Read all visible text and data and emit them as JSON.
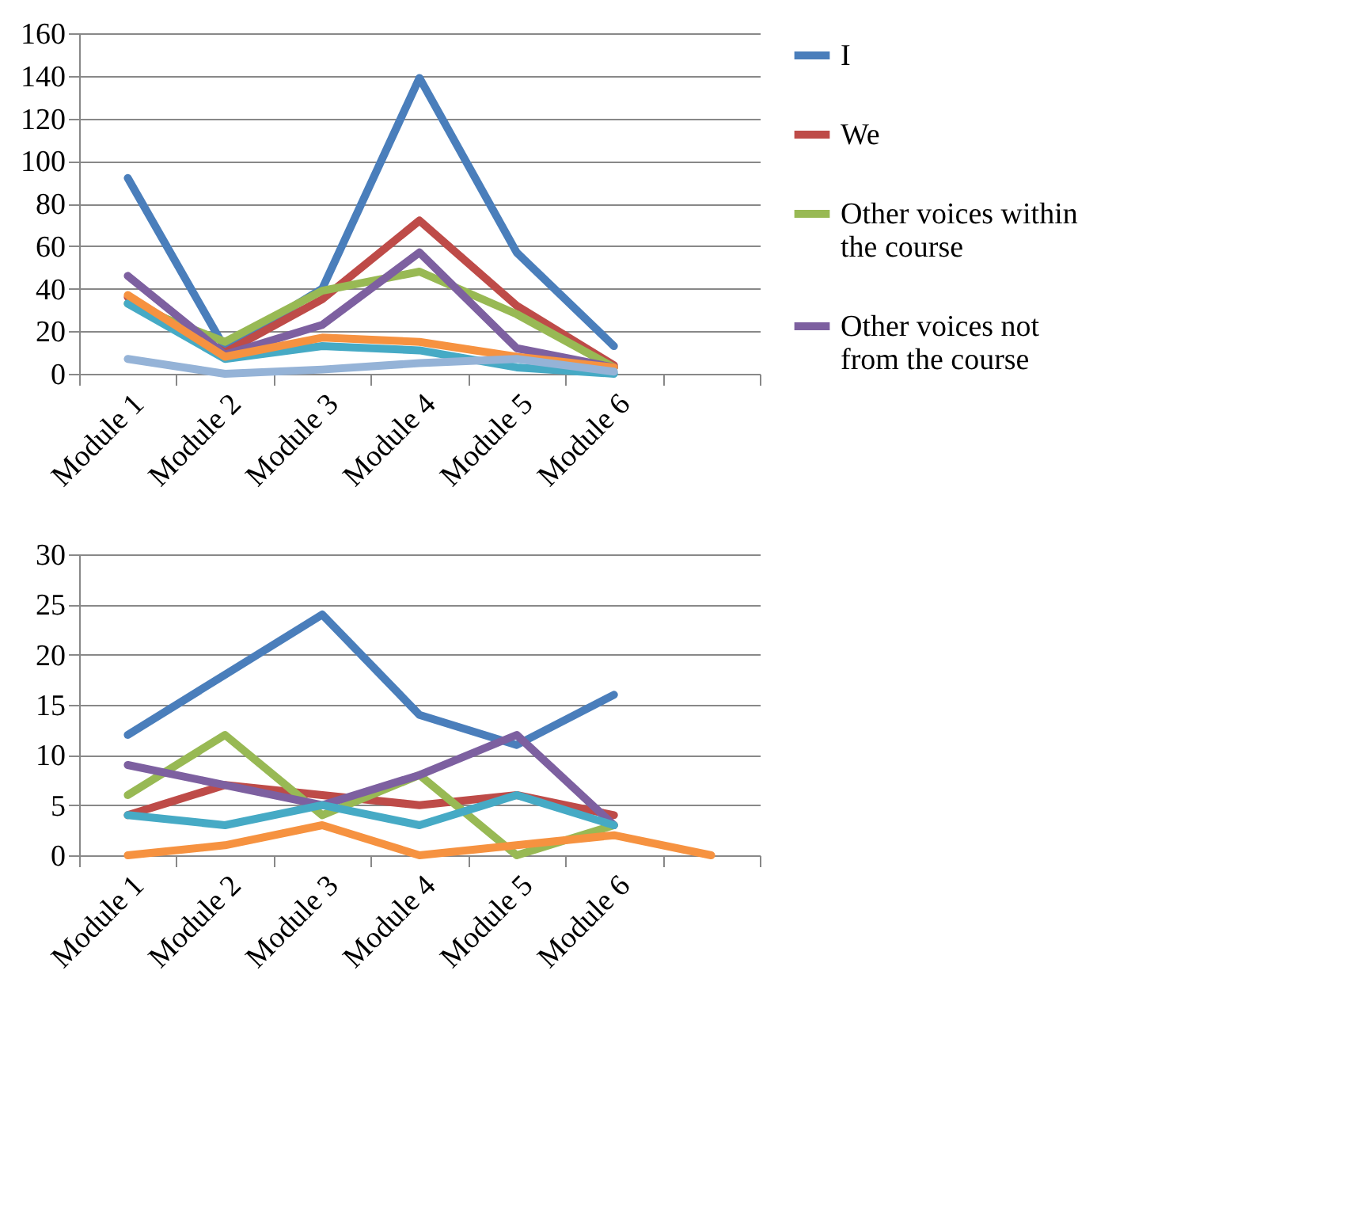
{
  "chart_data": [
    {
      "type": "line",
      "categories": [
        "Module 1",
        "Module 2",
        "Module 3",
        "Module 4",
        "Module 5",
        "Module 6",
        null
      ],
      "ylim": [
        0,
        160
      ],
      "yticks": [
        0,
        20,
        40,
        60,
        80,
        100,
        120,
        140,
        160
      ],
      "grid": "y",
      "legend": "right",
      "series": [
        {
          "name": "I",
          "color": "#4a7ebb",
          "values": [
            92,
            12,
            40,
            139,
            57,
            13,
            null
          ]
        },
        {
          "name": "We",
          "color": "#be4b48",
          "values": [
            36,
            10,
            35,
            72,
            32,
            4,
            null
          ]
        },
        {
          "name": "Other voices within the course",
          "color": "#98b954",
          "values": [
            33,
            15,
            39,
            48,
            28,
            3,
            null
          ]
        },
        {
          "name": "Other voices not from the course",
          "color": "#7d60a0",
          "values": [
            46,
            9,
            23,
            57,
            12,
            3,
            null
          ]
        },
        {
          "color": "#46aac5",
          "values": [
            33,
            7,
            13,
            11,
            3,
            0,
            null
          ]
        },
        {
          "color": "#f69240",
          "values": [
            37,
            8,
            17,
            15,
            8,
            3,
            null
          ]
        },
        {
          "color": "#95b3d7",
          "values": [
            7,
            0,
            2,
            5,
            7,
            1,
            null
          ]
        }
      ]
    },
    {
      "type": "line",
      "categories": [
        "Module 1",
        "Module 2",
        "Module 3",
        "Module 4",
        "Module 5",
        "Module 6",
        null
      ],
      "ylim": [
        0,
        30
      ],
      "yticks": [
        0,
        5,
        10,
        15,
        20,
        25,
        30
      ],
      "grid": "y",
      "legend": "right",
      "series": [
        {
          "name": "I",
          "color": "#4a7ebb",
          "values": [
            12,
            18,
            24,
            14,
            11,
            16,
            null
          ]
        },
        {
          "name": "We",
          "color": "#be4b48",
          "values": [
            4,
            7,
            6,
            5,
            6,
            4,
            null
          ]
        },
        {
          "name": "Other voices within the course",
          "color": "#98b954",
          "values": [
            6,
            12,
            4,
            8,
            0,
            3,
            null
          ]
        },
        {
          "name": "Other voices not from the course",
          "color": "#7d60a0",
          "values": [
            9,
            7,
            5,
            8,
            12,
            3,
            null
          ]
        },
        {
          "color": "#46aac5",
          "values": [
            4,
            3,
            5,
            3,
            6,
            3,
            null
          ]
        },
        {
          "color": "#f69240",
          "values": [
            0,
            1,
            3,
            0,
            1,
            2,
            0
          ]
        }
      ]
    }
  ]
}
